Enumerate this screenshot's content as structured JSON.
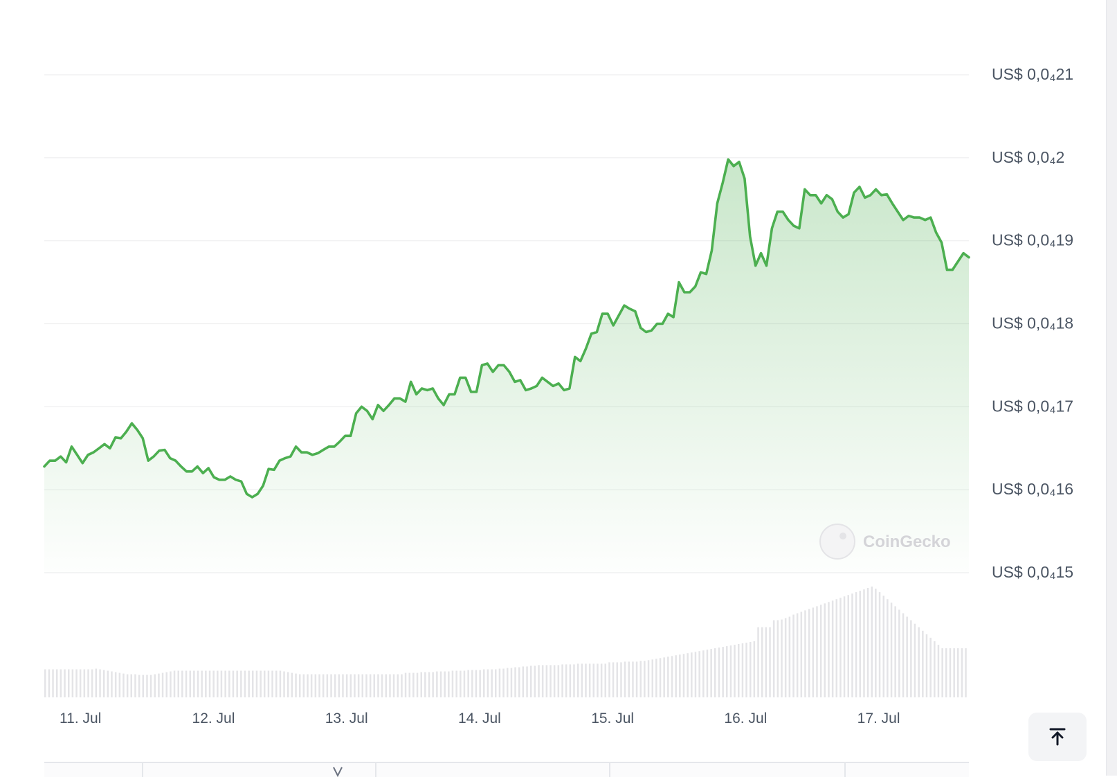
{
  "chart_data": {
    "type": "area",
    "watermark": "CoinGecko",
    "y_tick_labels": [
      "US$ 0,0₄21",
      "US$ 0,0₄2",
      "US$ 0,0₄19",
      "US$ 0,0₄18",
      "US$ 0,0₄17",
      "US$ 0,0₄16",
      "US$ 0,0₄15"
    ],
    "y_ticks": [
      2.1e-05,
      2e-05,
      1.9e-05,
      1.8e-05,
      1.7e-05,
      1.6e-05,
      1.5e-05
    ],
    "ylim": [
      1.5e-05,
      2.1e-05
    ],
    "x_tick_labels": [
      "11. Jul",
      "12. Jul",
      "13. Jul",
      "14. Jul",
      "15. Jul",
      "16. Jul",
      "17. Jul"
    ],
    "x_tick_days": [
      11,
      12,
      13,
      14,
      15,
      16,
      17
    ],
    "xlim_days": [
      10.9,
      17.85
    ],
    "line_color": "#4caf50",
    "fill_color": "#4caf50",
    "volume_color": "#e4e4e7",
    "price_series": [
      [
        10.9,
        16.28
      ],
      [
        10.95,
        16.35
      ],
      [
        11.0,
        16.35
      ],
      [
        11.05,
        16.4
      ],
      [
        11.1,
        16.33
      ],
      [
        11.15,
        16.52
      ],
      [
        11.2,
        16.42
      ],
      [
        11.25,
        16.32
      ],
      [
        11.3,
        16.42
      ],
      [
        11.35,
        16.45
      ],
      [
        11.4,
        16.5
      ],
      [
        11.45,
        16.55
      ],
      [
        11.5,
        16.5
      ],
      [
        11.55,
        16.63
      ],
      [
        11.6,
        16.62
      ],
      [
        11.65,
        16.7
      ],
      [
        11.7,
        16.8
      ],
      [
        11.75,
        16.72
      ],
      [
        11.8,
        16.62
      ],
      [
        11.85,
        16.35
      ],
      [
        11.9,
        16.4
      ],
      [
        11.95,
        16.47
      ],
      [
        12.0,
        16.48
      ],
      [
        12.05,
        16.38
      ],
      [
        12.1,
        16.35
      ],
      [
        12.15,
        16.28
      ],
      [
        12.2,
        16.22
      ],
      [
        12.25,
        16.22
      ],
      [
        12.3,
        16.28
      ],
      [
        12.35,
        16.2
      ],
      [
        12.4,
        16.26
      ],
      [
        12.45,
        16.15
      ],
      [
        12.5,
        16.12
      ],
      [
        12.55,
        16.12
      ],
      [
        12.6,
        16.16
      ],
      [
        12.65,
        16.12
      ],
      [
        12.7,
        16.1
      ],
      [
        12.75,
        15.95
      ],
      [
        12.8,
        15.91
      ],
      [
        12.85,
        15.95
      ],
      [
        12.9,
        16.05
      ],
      [
        12.95,
        16.25
      ],
      [
        13.0,
        16.24
      ],
      [
        13.05,
        16.35
      ],
      [
        13.1,
        16.38
      ],
      [
        13.15,
        16.4
      ],
      [
        13.2,
        16.52
      ],
      [
        13.25,
        16.45
      ],
      [
        13.3,
        16.45
      ],
      [
        13.35,
        16.42
      ],
      [
        13.4,
        16.44
      ],
      [
        13.45,
        16.48
      ],
      [
        13.5,
        16.52
      ],
      [
        13.55,
        16.52
      ],
      [
        13.6,
        16.58
      ],
      [
        13.65,
        16.65
      ],
      [
        13.7,
        16.65
      ],
      [
        13.75,
        16.92
      ],
      [
        13.8,
        17.0
      ],
      [
        13.85,
        16.95
      ],
      [
        13.9,
        16.85
      ],
      [
        13.95,
        17.02
      ],
      [
        14.0,
        16.95
      ],
      [
        14.05,
        17.02
      ],
      [
        14.1,
        17.1
      ],
      [
        14.15,
        17.1
      ],
      [
        14.2,
        17.06
      ],
      [
        14.25,
        17.3
      ],
      [
        14.3,
        17.15
      ],
      [
        14.35,
        17.22
      ],
      [
        14.4,
        17.2
      ],
      [
        14.45,
        17.22
      ],
      [
        14.5,
        17.1
      ],
      [
        14.55,
        17.02
      ],
      [
        14.6,
        17.15
      ],
      [
        14.65,
        17.15
      ],
      [
        14.7,
        17.35
      ],
      [
        14.75,
        17.35
      ],
      [
        14.8,
        17.18
      ],
      [
        14.85,
        17.18
      ],
      [
        14.9,
        17.5
      ],
      [
        14.95,
        17.52
      ],
      [
        15.0,
        17.42
      ],
      [
        15.05,
        17.5
      ],
      [
        15.1,
        17.5
      ],
      [
        15.15,
        17.42
      ],
      [
        15.2,
        17.3
      ],
      [
        15.25,
        17.32
      ],
      [
        15.3,
        17.2
      ],
      [
        15.35,
        17.22
      ],
      [
        15.4,
        17.25
      ],
      [
        15.45,
        17.35
      ],
      [
        15.5,
        17.3
      ],
      [
        15.55,
        17.25
      ],
      [
        15.6,
        17.28
      ],
      [
        15.65,
        17.2
      ],
      [
        15.7,
        17.22
      ],
      [
        15.75,
        17.6
      ],
      [
        15.8,
        17.55
      ],
      [
        15.85,
        17.7
      ],
      [
        15.9,
        17.88
      ],
      [
        15.95,
        17.9
      ],
      [
        16.0,
        18.12
      ],
      [
        16.05,
        18.12
      ],
      [
        16.1,
        17.98
      ],
      [
        16.15,
        18.1
      ],
      [
        16.2,
        18.22
      ],
      [
        16.25,
        18.18
      ],
      [
        16.3,
        18.15
      ],
      [
        16.35,
        17.95
      ],
      [
        16.4,
        17.9
      ],
      [
        16.45,
        17.92
      ],
      [
        16.5,
        18.0
      ],
      [
        16.55,
        18.0
      ],
      [
        16.6,
        18.12
      ],
      [
        16.65,
        18.08
      ],
      [
        16.7,
        18.5
      ],
      [
        16.75,
        18.38
      ],
      [
        16.8,
        18.38
      ],
      [
        16.85,
        18.45
      ],
      [
        16.9,
        18.62
      ],
      [
        16.95,
        18.6
      ],
      [
        17.0,
        18.88
      ],
      [
        17.05,
        19.45
      ],
      [
        17.1,
        19.7
      ],
      [
        17.15,
        19.98
      ],
      [
        17.2,
        19.9
      ],
      [
        17.25,
        19.95
      ],
      [
        17.3,
        19.75
      ],
      [
        17.35,
        19.05
      ],
      [
        17.4,
        18.7
      ],
      [
        17.45,
        18.85
      ],
      [
        17.5,
        18.7
      ],
      [
        17.55,
        19.15
      ],
      [
        17.6,
        19.35
      ],
      [
        17.65,
        19.35
      ],
      [
        17.7,
        19.25
      ],
      [
        17.75,
        19.18
      ],
      [
        17.8,
        19.15
      ],
      [
        17.85,
        19.62
      ],
      [
        17.9,
        19.55
      ],
      [
        17.95,
        19.55
      ],
      [
        18.0,
        19.45
      ],
      [
        18.05,
        19.55
      ],
      [
        18.1,
        19.5
      ],
      [
        18.15,
        19.35
      ],
      [
        18.2,
        19.28
      ],
      [
        18.25,
        19.32
      ],
      [
        18.3,
        19.58
      ],
      [
        18.35,
        19.65
      ],
      [
        18.4,
        19.52
      ],
      [
        18.45,
        19.55
      ],
      [
        18.5,
        19.62
      ],
      [
        18.55,
        19.55
      ],
      [
        18.6,
        19.56
      ],
      [
        18.65,
        19.45
      ],
      [
        18.7,
        19.35
      ],
      [
        18.75,
        19.25
      ],
      [
        18.8,
        19.3
      ],
      [
        18.85,
        19.28
      ],
      [
        18.9,
        19.28
      ],
      [
        18.95,
        19.25
      ],
      [
        19.0,
        19.28
      ],
      [
        19.05,
        19.1
      ],
      [
        19.1,
        18.98
      ],
      [
        19.15,
        18.65
      ],
      [
        19.2,
        18.65
      ],
      [
        19.25,
        18.75
      ],
      [
        19.3,
        18.85
      ],
      [
        19.35,
        18.8
      ]
    ],
    "volume_series": [
      40,
      40,
      40,
      40,
      40,
      40,
      40,
      40,
      40,
      40,
      40,
      40,
      40,
      41,
      40,
      39,
      38,
      37,
      36,
      35,
      34,
      33,
      33,
      33,
      32,
      32,
      32,
      32,
      33,
      34,
      35,
      36,
      37,
      38,
      38,
      38,
      38,
      38,
      38,
      38,
      38,
      38,
      38,
      38,
      38,
      38,
      38,
      38,
      38,
      38,
      38,
      38,
      38,
      38,
      38,
      38,
      38,
      38,
      38,
      38,
      38,
      37,
      36,
      35,
      34,
      33,
      33,
      33,
      33,
      33,
      33,
      33,
      33,
      33,
      33,
      33,
      33,
      33,
      33,
      33,
      33,
      33,
      33,
      33,
      33,
      33,
      33,
      33,
      33,
      33,
      33,
      33,
      35,
      35,
      35,
      35,
      36,
      36,
      36,
      36,
      37,
      37,
      37,
      37,
      38,
      38,
      38,
      38,
      39,
      39,
      39,
      39,
      40,
      40,
      40,
      40,
      41,
      41,
      42,
      42,
      43,
      43,
      44,
      44,
      45,
      45,
      46,
      46,
      46,
      46,
      46,
      46,
      47,
      47,
      47,
      47,
      48,
      48,
      48,
      48,
      48,
      48,
      48,
      48,
      50,
      50,
      50,
      50,
      51,
      51,
      51,
      51,
      52,
      52,
      53,
      54,
      55,
      56,
      57,
      58,
      59,
      60,
      61,
      62,
      63,
      64,
      65,
      66,
      67,
      68,
      69,
      70,
      71,
      72,
      73,
      74,
      75,
      76,
      77,
      78,
      79,
      80,
      100,
      100,
      100,
      100,
      110,
      110,
      111,
      113,
      115,
      118,
      120,
      122,
      124,
      126,
      128,
      130,
      132,
      134,
      136,
      138,
      140,
      142,
      144,
      146,
      148,
      150,
      152,
      154,
      156,
      158,
      155,
      150,
      145,
      140,
      135,
      130,
      125,
      120,
      115,
      110,
      105,
      100,
      95,
      90,
      85,
      80,
      75,
      70,
      70,
      70,
      70,
      70,
      70,
      70
    ]
  },
  "ui": {
    "scroll_top_icon": "arrow-up-to-line-icon"
  }
}
